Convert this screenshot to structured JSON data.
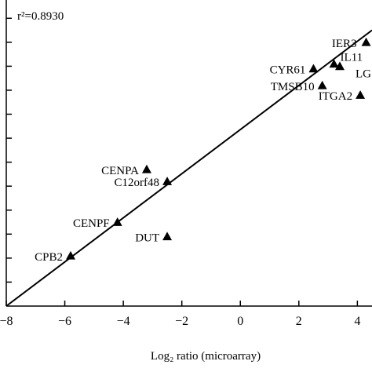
{
  "chart_data": {
    "type": "scatter",
    "annotation": "r²=0.8930",
    "xlabel": "Log₂ ratio (microarray)",
    "ylabel": "",
    "xlim": [
      -8,
      4.5
    ],
    "ylim": [
      -8,
      4.5
    ],
    "x_ticks": [
      -8,
      -6,
      -4,
      -2,
      0,
      2,
      4
    ],
    "x_tick_labels": [
      "−8",
      "−6",
      "−4",
      "−2",
      "0",
      "2",
      "4"
    ],
    "y_ticks": [
      -7,
      -6,
      -5,
      -4,
      -3,
      -2,
      -1,
      0,
      1,
      2,
      3,
      4
    ],
    "grid": false,
    "legend": "none",
    "marker": "triangle",
    "regression_line": {
      "x1": -8,
      "y1": -8,
      "x2": 4.5,
      "y2": 3.5
    },
    "points": [
      {
        "label": "IER3",
        "x": 4.3,
        "y": 3.0
      },
      {
        "label": "IL11",
        "x": 3.2,
        "y": 2.1
      },
      {
        "label": "LG",
        "x": 3.4,
        "y": 2.0
      },
      {
        "label": "CYR61",
        "x": 2.5,
        "y": 1.9
      },
      {
        "label": "TMSB10",
        "x": 2.8,
        "y": 1.2
      },
      {
        "label": "ITGA2",
        "x": 4.1,
        "y": 0.8
      },
      {
        "label": "CENPA",
        "x": -3.2,
        "y": -2.3
      },
      {
        "label": "C12orf48",
        "x": -2.5,
        "y": -2.8
      },
      {
        "label": "CENPF",
        "x": -4.2,
        "y": -4.5
      },
      {
        "label": "DUT",
        "x": -2.5,
        "y": -5.1
      },
      {
        "label": "CPB2",
        "x": -5.8,
        "y": -5.9
      }
    ]
  }
}
